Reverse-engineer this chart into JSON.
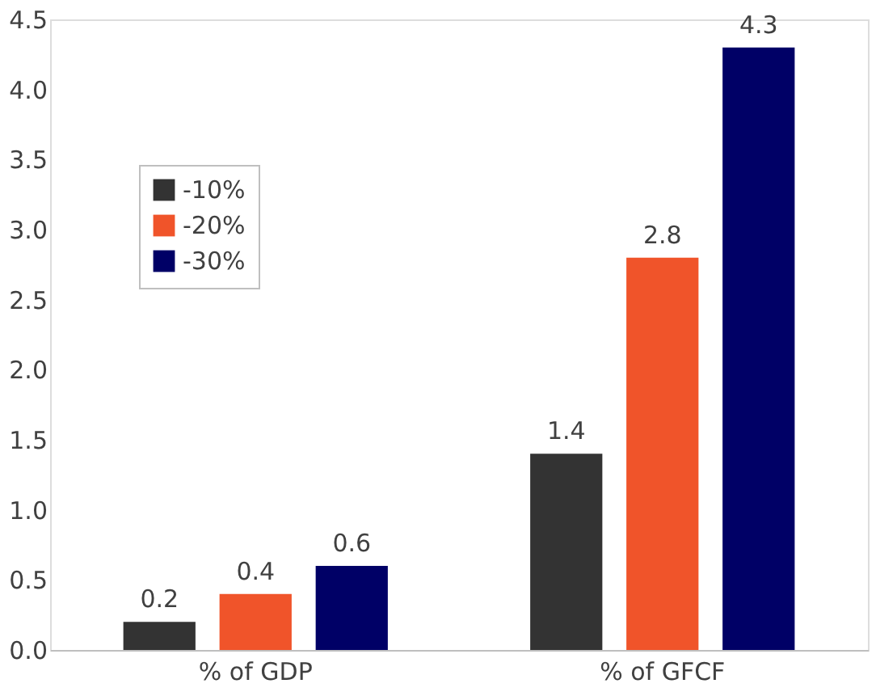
{
  "chart_data": {
    "type": "bar",
    "categories": [
      "% of GDP",
      "% of GFCF"
    ],
    "series": [
      {
        "name": "-10%",
        "color": "#333333",
        "values": [
          0.2,
          1.4
        ]
      },
      {
        "name": "-20%",
        "color": "#f0542a",
        "values": [
          0.4,
          2.8
        ]
      },
      {
        "name": "-30%",
        "color": "#000066",
        "values": [
          0.6,
          4.3
        ]
      }
    ],
    "ylim": [
      0,
      4.5
    ],
    "yticks": [
      {
        "value": 0,
        "label": "0.0"
      },
      0.5,
      {
        "value": 1,
        "label": "1.0"
      },
      1.5,
      {
        "value": 2,
        "label": "2.0"
      },
      2.5,
      {
        "value": 3,
        "label": "3.0"
      },
      3.5,
      {
        "value": 4,
        "label": "4.0"
      },
      4.5
    ],
    "data_labels": true,
    "grid": false,
    "legend": "top left"
  }
}
